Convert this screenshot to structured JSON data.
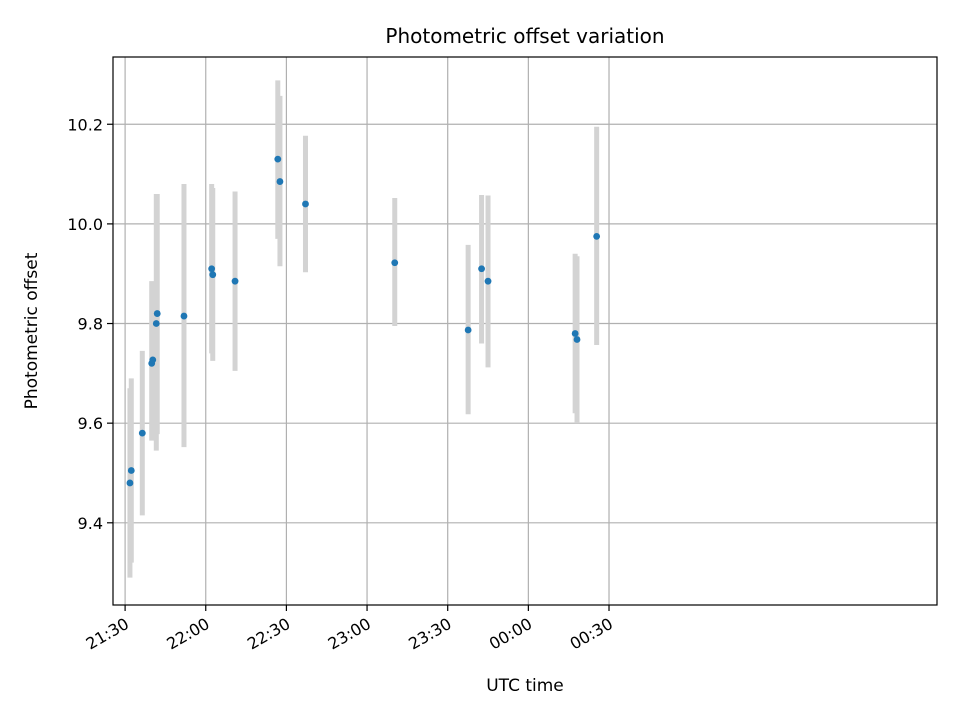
{
  "chart_data": {
    "type": "scatter",
    "title": "Photometric offset variation",
    "xlabel": "UTC time",
    "ylabel": "Photometric offset",
    "x_unit": "minutes after 21:30 UTC",
    "xlim": [
      -4.5,
      302
    ],
    "ylim": [
      9.235,
      10.335
    ],
    "grid": true,
    "x_ticks": [
      {
        "value": 0,
        "label": "21:30"
      },
      {
        "value": 30,
        "label": "22:00"
      },
      {
        "value": 60,
        "label": "22:30"
      },
      {
        "value": 90,
        "label": "23:00"
      },
      {
        "value": 120,
        "label": "23:30"
      },
      {
        "value": 150,
        "label": "00:00"
      },
      {
        "value": 180,
        "label": "00:30"
      }
    ],
    "y_ticks": [
      {
        "value": 9.4,
        "label": "9.4"
      },
      {
        "value": 9.6,
        "label": "9.6"
      },
      {
        "value": 9.8,
        "label": "9.8"
      },
      {
        "value": 10.0,
        "label": "10.0"
      },
      {
        "value": 10.2,
        "label": "10.2"
      }
    ],
    "marker_color": "#1f77b4",
    "errorbar_color": "#d3d3d3",
    "points": [
      {
        "x": 1.8,
        "y": 9.48,
        "lo": 9.29,
        "hi": 9.67
      },
      {
        "x": 2.3,
        "y": 9.505,
        "lo": 9.32,
        "hi": 9.69
      },
      {
        "x": 6.4,
        "y": 9.58,
        "lo": 9.415,
        "hi": 9.745
      },
      {
        "x": 9.9,
        "y": 9.72,
        "lo": 9.565,
        "hi": 9.885
      },
      {
        "x": 10.3,
        "y": 9.727,
        "lo": 9.58,
        "hi": 9.878
      },
      {
        "x": 11.6,
        "y": 9.8,
        "lo": 9.545,
        "hi": 10.06
      },
      {
        "x": 11.95,
        "y": 9.82,
        "lo": 9.578,
        "hi": 10.06
      },
      {
        "x": 21.9,
        "y": 9.815,
        "lo": 9.552,
        "hi": 10.08
      },
      {
        "x": 32.2,
        "y": 9.91,
        "lo": 9.74,
        "hi": 10.08
      },
      {
        "x": 32.6,
        "y": 9.898,
        "lo": 9.725,
        "hi": 10.072
      },
      {
        "x": 40.9,
        "y": 9.885,
        "lo": 9.705,
        "hi": 10.065
      },
      {
        "x": 56.8,
        "y": 10.13,
        "lo": 9.97,
        "hi": 10.288
      },
      {
        "x": 57.6,
        "y": 10.085,
        "lo": 9.915,
        "hi": 10.257
      },
      {
        "x": 67.1,
        "y": 10.04,
        "lo": 9.903,
        "hi": 10.177
      },
      {
        "x": 100.3,
        "y": 9.922,
        "lo": 9.795,
        "hi": 10.052
      },
      {
        "x": 127.6,
        "y": 9.787,
        "lo": 9.618,
        "hi": 9.958
      },
      {
        "x": 132.6,
        "y": 9.91,
        "lo": 9.76,
        "hi": 10.058
      },
      {
        "x": 135.0,
        "y": 9.885,
        "lo": 9.712,
        "hi": 10.057
      },
      {
        "x": 167.4,
        "y": 9.78,
        "lo": 9.62,
        "hi": 9.94
      },
      {
        "x": 168.1,
        "y": 9.768,
        "lo": 9.6,
        "hi": 9.935
      },
      {
        "x": 175.4,
        "y": 9.975,
        "lo": 9.757,
        "hi": 10.195
      }
    ]
  }
}
